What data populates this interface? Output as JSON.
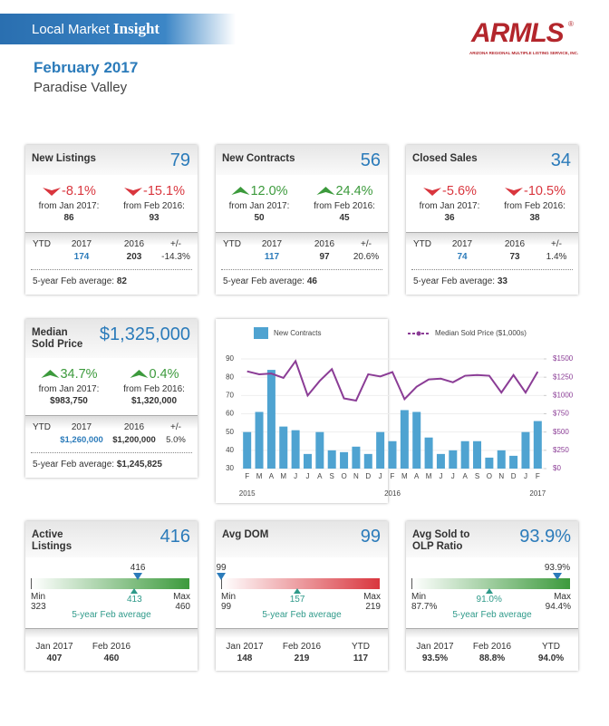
{
  "header": {
    "title": "Local Market",
    "title_emphasis": "Insight",
    "logo": "ARMLS",
    "logo_mark": "®",
    "logo_tagline": "ARIZONA REGIONAL MULTIPLE LISTING SERVICE, INC.",
    "month": "February 2017",
    "area": "Paradise Valley"
  },
  "stat_cards": [
    {
      "title": "New Listings",
      "value": "79",
      "changes": [
        {
          "pct": "-8.1%",
          "label": "from Jan 2017:",
          "value": "86"
        },
        {
          "pct": "-15.1%",
          "label": "from Feb 2016:",
          "value": "93"
        }
      ],
      "ytd_headers": [
        "YTD",
        "2017",
        "2016",
        "+/-"
      ],
      "ytd_values": [
        "174",
        "203",
        "-14.3%"
      ],
      "avg_label": "5-year Feb average:",
      "avg_value": "82"
    },
    {
      "title": "New Contracts",
      "value": "56",
      "changes": [
        {
          "pct": "12.0%",
          "label": "from Jan 2017:",
          "value": "50"
        },
        {
          "pct": "24.4%",
          "label": "from Feb 2016:",
          "value": "45"
        }
      ],
      "ytd_headers": [
        "YTD",
        "2017",
        "2016",
        "+/-"
      ],
      "ytd_values": [
        "117",
        "97",
        "20.6%"
      ],
      "avg_label": "5-year Feb average:",
      "avg_value": "46"
    },
    {
      "title": "Closed Sales",
      "value": "34",
      "changes": [
        {
          "pct": "-5.6%",
          "label": "from Jan 2017:",
          "value": "36"
        },
        {
          "pct": "-10.5%",
          "label": "from Feb 2016:",
          "value": "38"
        }
      ],
      "ytd_headers": [
        "YTD",
        "2017",
        "2016",
        "+/-"
      ],
      "ytd_values": [
        "74",
        "73",
        "1.4%"
      ],
      "avg_label": "5-year Feb average:",
      "avg_value": "33"
    },
    {
      "title": "Median Sold Price",
      "value": "$1,325,000",
      "changes": [
        {
          "pct": "34.7%",
          "label": "from Jan 2017:",
          "value": "$983,750"
        },
        {
          "pct": "0.4%",
          "label": "from Feb 2016:",
          "value": "$1,320,000"
        }
      ],
      "ytd_headers": [
        "YTD",
        "2017",
        "2016",
        "+/-"
      ],
      "ytd_values": [
        "$1,260,000",
        "$1,200,000",
        "5.0%"
      ],
      "avg_label": "5-year Feb average:",
      "avg_value": "$1,245,825"
    }
  ],
  "chart_data": {
    "type": "bar",
    "categories": [
      "F",
      "M",
      "A",
      "M",
      "J",
      "J",
      "A",
      "S",
      "O",
      "N",
      "D",
      "J",
      "F",
      "M",
      "A",
      "M",
      "J",
      "J",
      "A",
      "S",
      "O",
      "N",
      "D",
      "J",
      "F"
    ],
    "years": [
      "2015",
      null,
      null,
      null,
      null,
      null,
      null,
      null,
      null,
      null,
      null,
      null,
      "2016",
      null,
      null,
      null,
      null,
      null,
      null,
      null,
      null,
      null,
      null,
      null,
      "2017"
    ],
    "series": [
      {
        "name": "New Contracts",
        "type": "bar",
        "color": "#4fa3d1",
        "values": [
          50,
          61,
          84,
          53,
          51,
          38,
          50,
          40,
          39,
          42,
          38,
          50,
          45,
          62,
          61,
          47,
          38,
          40,
          45,
          45,
          36,
          40,
          37,
          50,
          56
        ]
      },
      {
        "name": "Median Sold Price ($1,000s)",
        "type": "line",
        "axis": "y2",
        "color": "#8b3d96",
        "values": [
          1330,
          1290,
          1300,
          1240,
          1470,
          1000,
          1200,
          1360,
          960,
          930,
          1290,
          1260,
          1320,
          950,
          1120,
          1220,
          1230,
          1180,
          1270,
          1280,
          1270,
          1040,
          1280,
          1040,
          1325
        ]
      }
    ],
    "ylim": [
      30,
      90
    ],
    "yticks": [
      30,
      40,
      50,
      60,
      70,
      80,
      90
    ],
    "y2lim": [
      0,
      1500
    ],
    "y2ticks": [
      {
        "value": 0,
        "label": "$0"
      },
      {
        "value": 250,
        "label": "$250"
      },
      {
        "value": 500,
        "label": "$500"
      },
      {
        "value": 750,
        "label": "$750"
      },
      {
        "value": 1000,
        "label": "$1000"
      },
      {
        "value": 1250,
        "label": "$1250"
      },
      {
        "value": 1500,
        "label": "$1500"
      }
    ],
    "grid": true
  },
  "gauges": [
    {
      "title": "Active Listings",
      "value": "416",
      "current": "416",
      "min_label": "Min",
      "min": "323",
      "max_label": "Max",
      "max": "460",
      "average": "413",
      "average_label": "5-year Feb average",
      "color": "#3c9a3c",
      "footer": [
        {
          "label": "Jan 2017",
          "value": "407"
        },
        {
          "label": "Feb 2016",
          "value": "460"
        }
      ]
    },
    {
      "title": "Avg DOM",
      "value": "99",
      "current": "99",
      "min_label": "Min",
      "min": "99",
      "max_label": "Max",
      "max": "219",
      "average": "157",
      "average_label": "5-year Feb average",
      "color": "#d9363e",
      "footer": [
        {
          "label": "Jan 2017",
          "value": "148"
        },
        {
          "label": "Feb 2016",
          "value": "219"
        },
        {
          "label": "YTD",
          "value": "117"
        }
      ]
    },
    {
      "title": "Avg Sold to OLP Ratio",
      "value": "93.9%",
      "current": "93.9%",
      "min_label": "Min",
      "min": "87.7%",
      "max_label": "Max",
      "max": "94.4%",
      "average": "91.0%",
      "average_label": "5-year Feb average",
      "color": "#3c9a3c",
      "footer": [
        {
          "label": "Jan 2017",
          "value": "93.5%"
        },
        {
          "label": "Feb 2016",
          "value": "88.8%"
        },
        {
          "label": "YTD",
          "value": "94.0%"
        }
      ]
    }
  ]
}
